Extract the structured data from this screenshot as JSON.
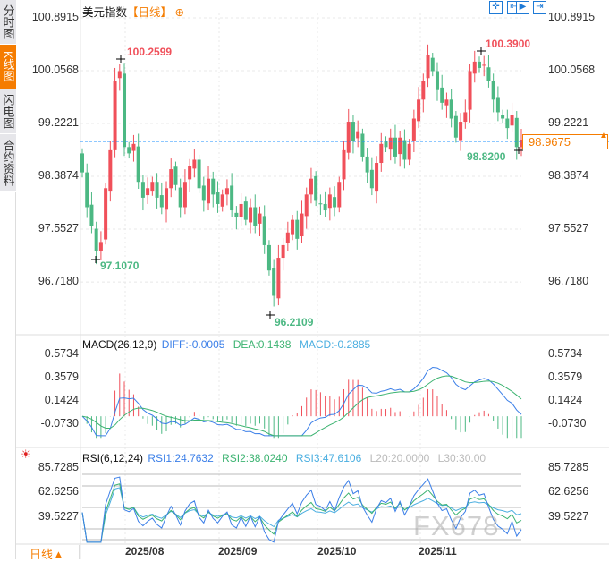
{
  "sidebar": {
    "tabs": [
      {
        "label": "分时图"
      },
      {
        "label": "K线图",
        "active": true
      },
      {
        "label": "闪电图"
      },
      {
        "label": "合约资料"
      }
    ]
  },
  "header": {
    "title": "美元指数",
    "period": "【日线】",
    "add_icon": "plus-circle-icon",
    "toolbar": [
      {
        "icon": "crosshair-icon"
      },
      {
        "icon": "fit-range-icon"
      },
      {
        "icon": "play-forward-icon"
      },
      {
        "icon": "jump-latest-icon"
      }
    ]
  },
  "colors": {
    "up": "#f0505a",
    "down": "#4cb883",
    "last_line": "#1e90ff",
    "accent": "#f57c00",
    "diff": "#3b7fe8",
    "dea": "#3cb371",
    "macd": "#4aaee0",
    "rsi1": "#3b7fe8",
    "rsi2": "#3cb371",
    "rsi3": "#4aaee0"
  },
  "chart_data": [
    {
      "type": "candlestick",
      "title": "美元指数",
      "period": "日线",
      "y_ticks": [
        "100.8915",
        "100.0568",
        "99.2221",
        "98.3874",
        "97.5527",
        "96.7180"
      ],
      "x_ticks": [
        "2025/08",
        "2025/09",
        "2025/10",
        "2025/11"
      ],
      "closes": [
        98.45,
        97.9,
        97.6,
        97.2,
        97.35,
        98.2,
        98.8,
        99.9,
        100.05,
        98.85,
        98.75,
        98.9,
        98.3,
        98.05,
        98.2,
        98.3,
        98.05,
        97.9,
        98.2,
        98.5,
        98.25,
        97.9,
        98.3,
        98.55,
        98.65,
        98.2,
        98.0,
        98.35,
        98.1,
        97.95,
        98.1,
        98.2,
        97.85,
        97.75,
        97.95,
        97.7,
        97.9,
        97.6,
        97.8,
        97.3,
        96.9,
        96.5,
        97.1,
        97.3,
        97.5,
        97.7,
        97.4,
        97.8,
        98.1,
        98.35,
        98.0,
        97.95,
        97.85,
        98.1,
        97.9,
        98.3,
        98.8,
        99.25,
        98.95,
        99.1,
        98.7,
        98.45,
        98.2,
        98.6,
        98.9,
        98.85,
        99.0,
        98.7,
        99.0,
        98.65,
        98.9,
        99.3,
        99.6,
        99.9,
        100.3,
        100.05,
        99.75,
        99.55,
        99.6,
        99.3,
        99.0,
        99.25,
        99.4,
        100.05,
        100.2,
        100.1,
        100.15,
        99.9,
        99.6,
        99.4,
        99.3,
        99.15,
        99.35,
        98.85,
        98.9675
      ],
      "annotations": {
        "high1": "100.2599",
        "low1": "97.1070",
        "low2": "96.2109",
        "high2": "100.3900",
        "low3": "98.8200"
      },
      "last_price": "98.9675"
    },
    {
      "type": "line",
      "indicator": "MACD(26,12,9)",
      "diff_label": "DIFF:-0.0005",
      "dea_label": "DEA:0.1438",
      "macd_label": "MACD:-0.2885",
      "y_ticks": [
        "0.5734",
        "0.3579",
        "0.1424",
        "-0.0730"
      ]
    },
    {
      "type": "line",
      "indicator": "RSI(6,12,24)",
      "rsi1_label": "RSI1:24.7632",
      "rsi2_label": "RSI2:38.0240",
      "rsi3_label": "RSI3:47.6106",
      "l20_label": "L20:20.0000",
      "l30_label": "L30:30.00",
      "y_ticks": [
        "85.7285",
        "62.6256",
        "39.5227"
      ]
    }
  ],
  "footer": {
    "period_button": "日线▲",
    "watermark": "FX678"
  }
}
